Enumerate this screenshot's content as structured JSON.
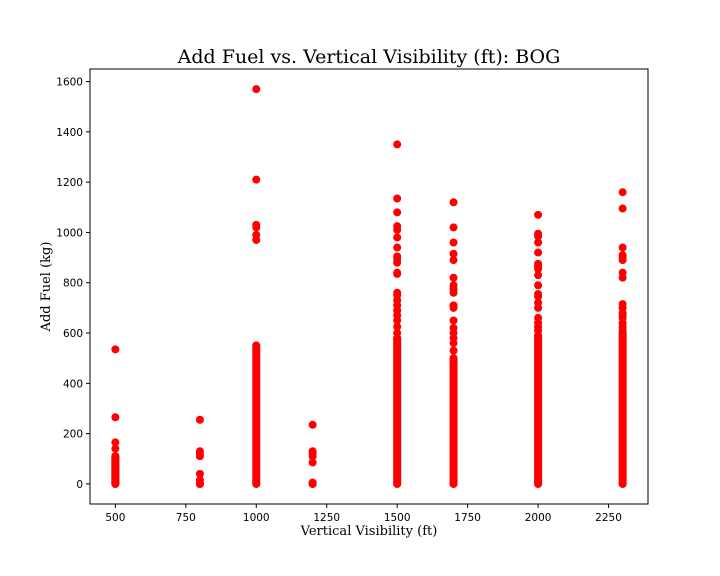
{
  "chart_data": {
    "type": "scatter",
    "title": "Add Fuel vs. Vertical Visibility (ft): BOG",
    "xlabel": "Vertical Visibility (ft)",
    "ylabel": "Add Fuel (kg)",
    "xlim": [
      410,
      2390
    ],
    "ylim": [
      -80,
      1650
    ],
    "xticks": [
      500,
      750,
      1000,
      1250,
      1500,
      1750,
      2000,
      2250
    ],
    "yticks": [
      0,
      200,
      400,
      600,
      800,
      1000,
      1200,
      1400,
      1600
    ],
    "grid": false,
    "color": "#ff0000",
    "series": [
      {
        "x": 500,
        "solid_range": [
          0,
          110
        ],
        "points": [
          0,
          5,
          10,
          15,
          20,
          25,
          30,
          40,
          50,
          55,
          60,
          70,
          80,
          90,
          100,
          105,
          110,
          140,
          165,
          265,
          535
        ]
      },
      {
        "x": 800,
        "solid_range": [
          0,
          0
        ],
        "points": [
          0,
          15,
          40,
          110,
          120,
          130,
          255
        ]
      },
      {
        "x": 1000,
        "solid_range": [
          0,
          550
        ],
        "points": [
          970,
          990,
          1020,
          1030,
          1210,
          1570
        ]
      },
      {
        "x": 1200,
        "solid_range": [
          0,
          0
        ],
        "points": [
          0,
          5,
          85,
          110,
          120,
          130,
          235
        ]
      },
      {
        "x": 1500,
        "solid_range": [
          0,
          580
        ],
        "points": [
          600,
          625,
          650,
          670,
          690,
          710,
          730,
          750,
          760,
          835,
          840,
          880,
          895,
          905,
          940,
          980,
          1010,
          1025,
          1080,
          1135,
          1350
        ]
      },
      {
        "x": 1700,
        "solid_range": [
          0,
          500
        ],
        "points": [
          530,
          560,
          580,
          600,
          620,
          650,
          700,
          710,
          760,
          775,
          790,
          820,
          890,
          915,
          960,
          1020,
          1120
        ]
      },
      {
        "x": 2000,
        "solid_range": [
          0,
          590
        ],
        "points": [
          610,
          625,
          640,
          660,
          700,
          720,
          745,
          755,
          790,
          830,
          855,
          865,
          875,
          920,
          960,
          985,
          995,
          1070
        ]
      },
      {
        "x": 2300,
        "solid_range": [
          0,
          600
        ],
        "points": [
          610,
          625,
          640,
          660,
          670,
          680,
          700,
          715,
          820,
          840,
          890,
          900,
          910,
          940,
          1095,
          1160
        ]
      }
    ]
  }
}
